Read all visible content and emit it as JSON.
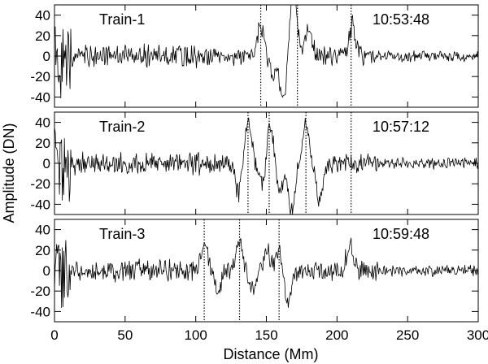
{
  "chart_data": {
    "type": "line",
    "layout": "stacked-panels",
    "xlabel": "Distance (Mm)",
    "ylabel": "Amplitude (DN)",
    "xlim": [
      0,
      300
    ],
    "ylim": [
      -50,
      50
    ],
    "xticks": [
      0,
      50,
      100,
      150,
      200,
      250,
      300
    ],
    "yticks": [
      -40,
      -20,
      0,
      20,
      40
    ],
    "line_color": "#000000",
    "panels": [
      {
        "label": "Train-1",
        "time": "10:53:48",
        "markers": [
          146,
          172,
          210
        ],
        "features": [
          {
            "x": 146,
            "value": 28
          },
          {
            "x": 155,
            "value": -20
          },
          {
            "x": 162,
            "value": -48
          },
          {
            "x": 167,
            "value": 25
          },
          {
            "x": 170,
            "value": 48
          },
          {
            "x": 180,
            "value": 25
          },
          {
            "x": 211,
            "value": 30
          }
        ]
      },
      {
        "label": "Train-2",
        "time": "10:57:12",
        "markers": [
          137,
          152,
          178,
          210
        ],
        "features": [
          {
            "x": 130,
            "value": -30
          },
          {
            "x": 137,
            "value": 40
          },
          {
            "x": 148,
            "value": -30
          },
          {
            "x": 152,
            "value": 48
          },
          {
            "x": 160,
            "value": -25
          },
          {
            "x": 168,
            "value": -48
          },
          {
            "x": 178,
            "value": 40
          },
          {
            "x": 188,
            "value": -38
          }
        ]
      },
      {
        "label": "Train-3",
        "time": "10:59:48",
        "markers": [
          106,
          131,
          159
        ],
        "features": [
          {
            "x": 106,
            "value": 28
          },
          {
            "x": 116,
            "value": -20
          },
          {
            "x": 131,
            "value": 28
          },
          {
            "x": 140,
            "value": -15
          },
          {
            "x": 150,
            "value": 20
          },
          {
            "x": 159,
            "value": 20
          },
          {
            "x": 165,
            "value": -35
          },
          {
            "x": 209,
            "value": 25
          }
        ]
      }
    ]
  }
}
